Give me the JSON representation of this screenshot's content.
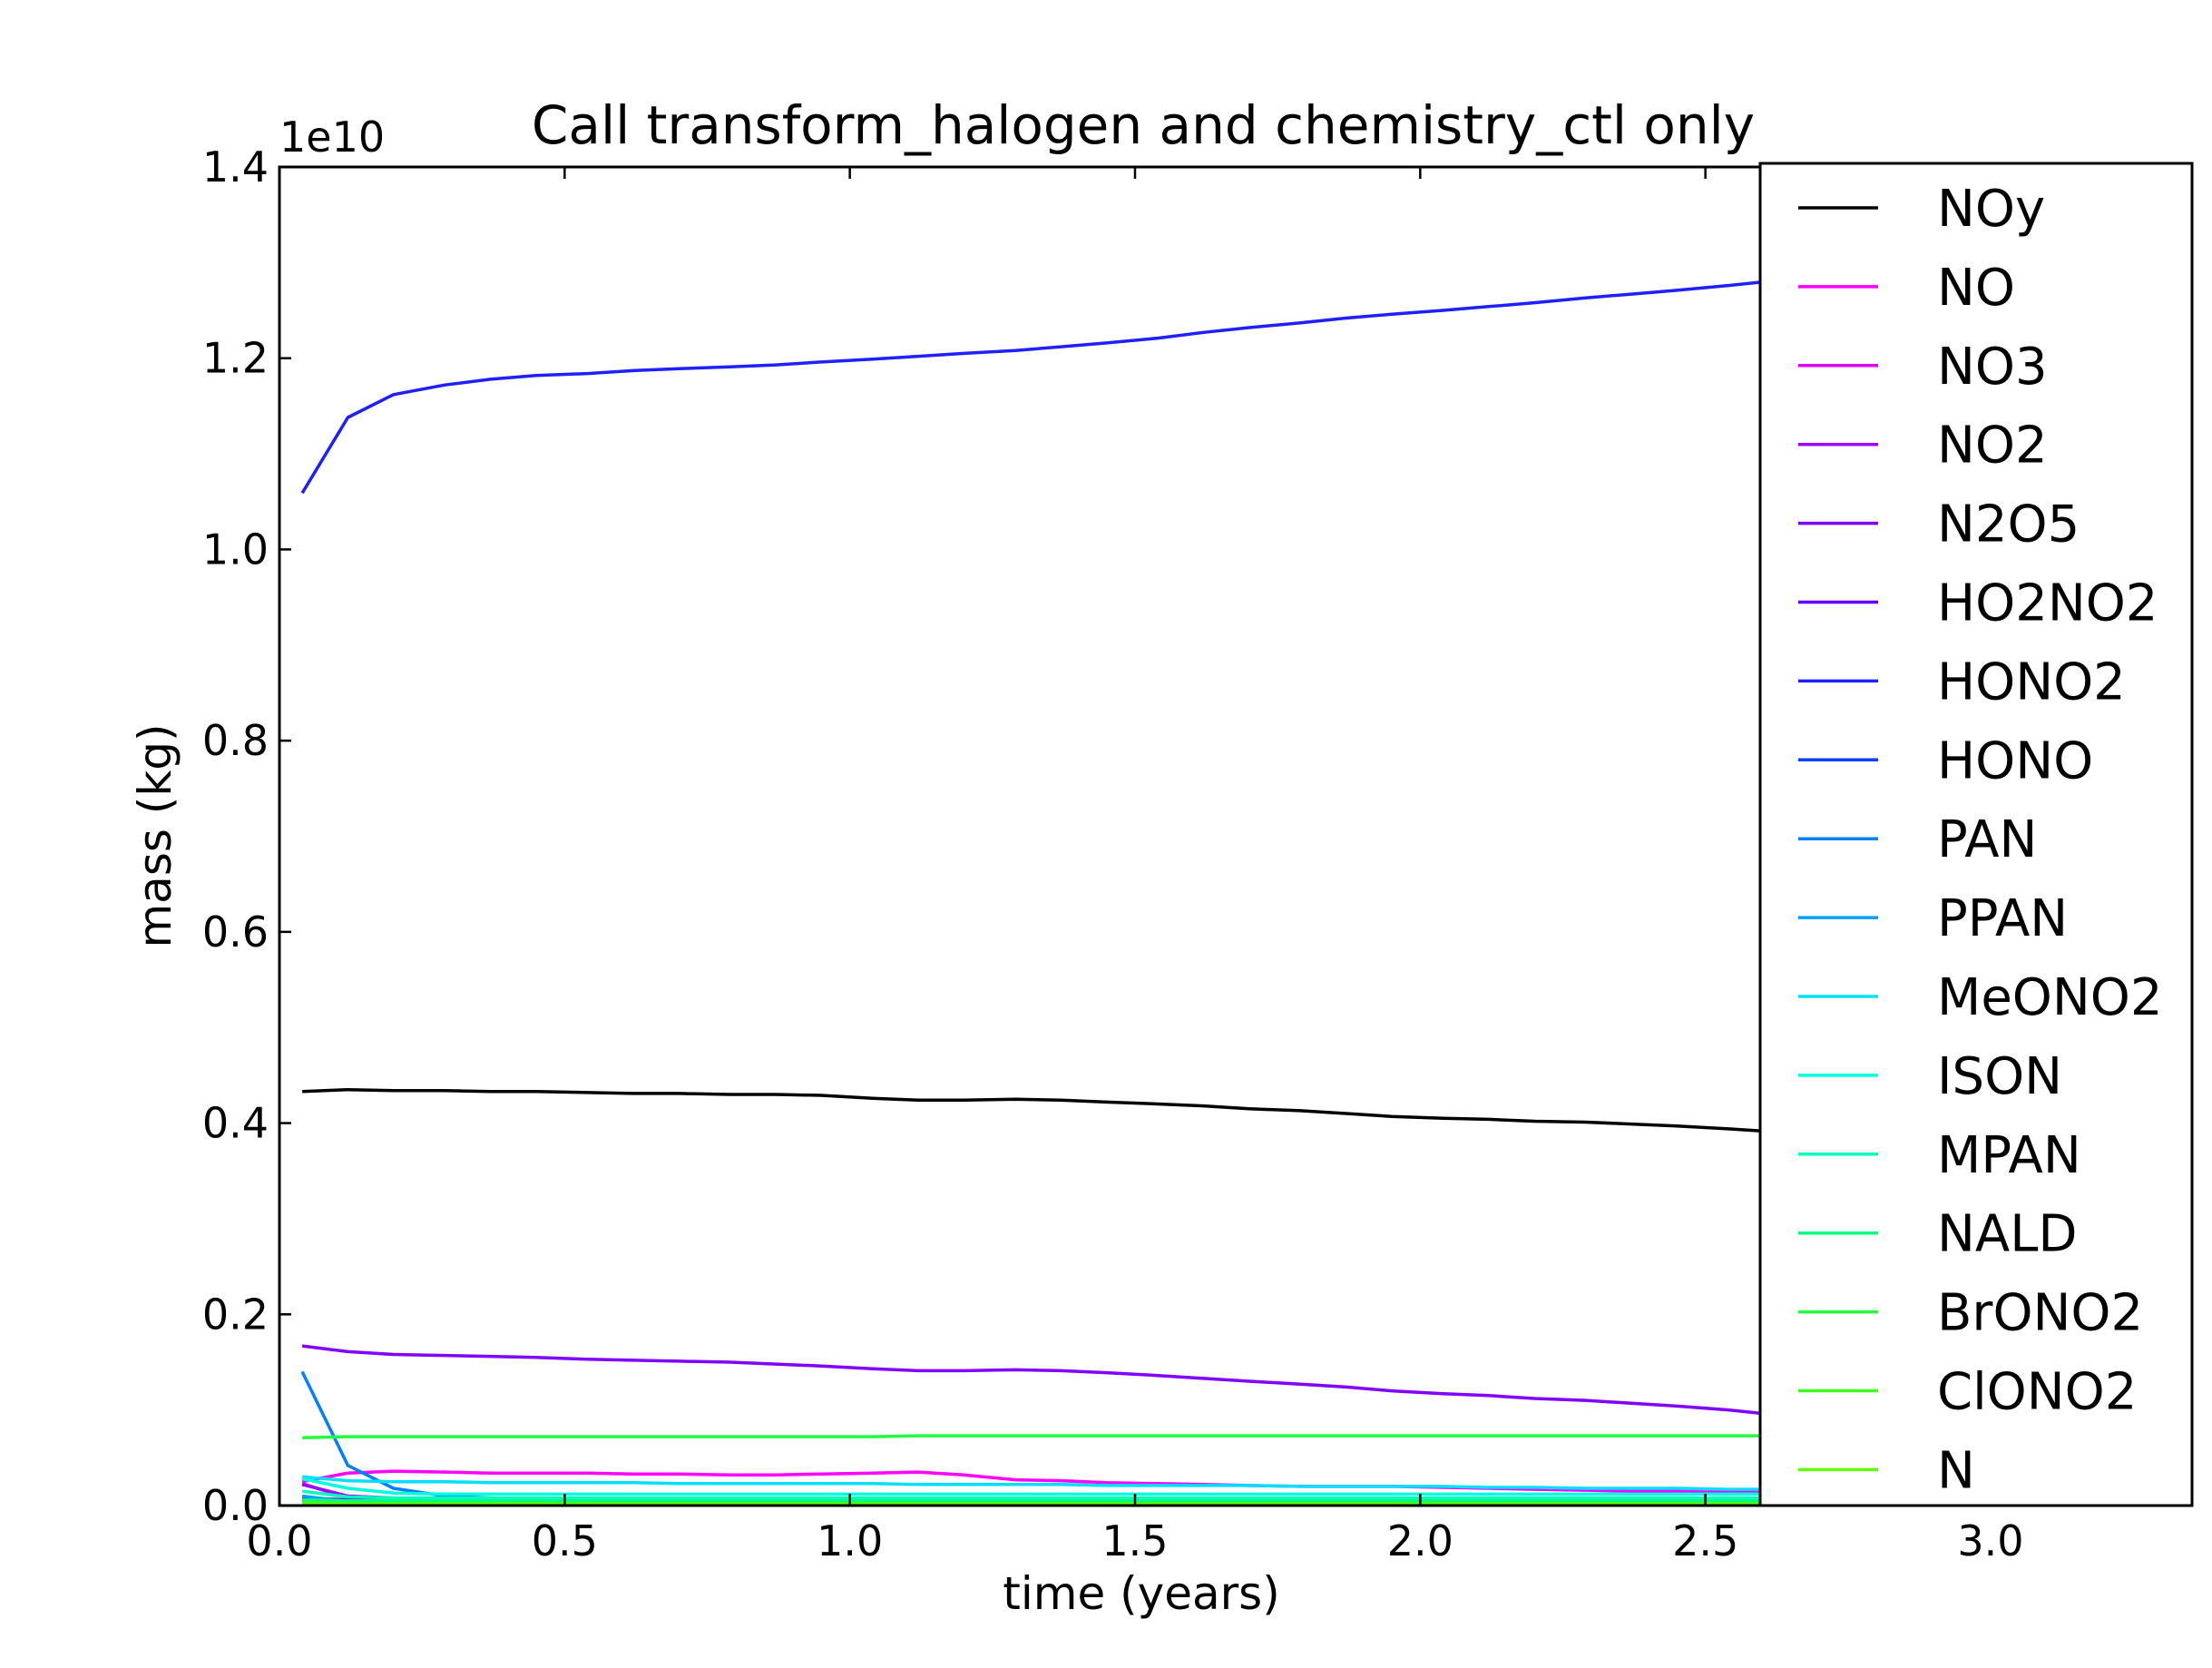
{
  "chart_data": {
    "type": "line",
    "title": "Call transform_halogen and chemistry_ctl only",
    "xlabel": "time (years)",
    "ylabel": "mass (kg)",
    "y_offset_label": "1e10",
    "xlim": [
      0.0,
      3.35
    ],
    "ylim": [
      0.0,
      1.4
    ],
    "x_ticks": [
      "0.0",
      "0.5",
      "1.0",
      "1.5",
      "2.0",
      "2.5",
      "3.0"
    ],
    "x_tick_values": [
      0.0,
      0.5,
      1.0,
      1.5,
      2.0,
      2.5,
      3.0
    ],
    "y_ticks": [
      "0.0",
      "0.2",
      "0.4",
      "0.6",
      "0.8",
      "1.0",
      "1.2",
      "1.4"
    ],
    "y_tick_values": [
      0.0,
      0.2,
      0.4,
      0.6,
      0.8,
      1.0,
      1.2,
      1.4
    ],
    "grid": false,
    "legend_position": "right",
    "x": [
      0.04,
      0.12,
      0.2,
      0.29,
      0.37,
      0.45,
      0.54,
      0.62,
      0.7,
      0.79,
      0.87,
      0.95,
      1.04,
      1.12,
      1.2,
      1.29,
      1.37,
      1.45,
      1.54,
      1.62,
      1.7,
      1.79,
      1.87,
      1.95,
      2.04,
      2.12,
      2.2,
      2.29,
      2.37,
      2.45,
      2.54,
      2.62
    ],
    "series": [
      {
        "name": "NOy",
        "color": "#000000",
        "values": [
          0.433,
          0.435,
          0.434,
          0.434,
          0.433,
          0.433,
          0.432,
          0.431,
          0.431,
          0.43,
          0.43,
          0.429,
          0.426,
          0.424,
          0.424,
          0.425,
          0.424,
          0.422,
          0.42,
          0.418,
          0.415,
          0.413,
          0.41,
          0.407,
          0.405,
          0.404,
          0.402,
          0.401,
          0.399,
          0.397,
          0.394,
          0.391
        ]
      },
      {
        "name": "NO",
        "color": "#ff00ff",
        "values": [
          0.025,
          0.034,
          0.036,
          0.035,
          0.034,
          0.034,
          0.034,
          0.033,
          0.033,
          0.032,
          0.032,
          0.033,
          0.034,
          0.035,
          0.032,
          0.027,
          0.026,
          0.024,
          0.023,
          0.022,
          0.021,
          0.02,
          0.02,
          0.02,
          0.019,
          0.018,
          0.017,
          0.016,
          0.015,
          0.015,
          0.014,
          0.014
        ]
      },
      {
        "name": "NO3",
        "color": "#df00ff",
        "values": [
          0.023,
          0.008,
          0.006,
          0.005,
          0.005,
          0.005,
          0.005,
          0.005,
          0.005,
          0.005,
          0.005,
          0.005,
          0.005,
          0.005,
          0.005,
          0.005,
          0.005,
          0.005,
          0.005,
          0.005,
          0.005,
          0.005,
          0.005,
          0.005,
          0.005,
          0.005,
          0.005,
          0.005,
          0.005,
          0.005,
          0.005,
          0.005
        ]
      },
      {
        "name": "NO2",
        "color": "#9f00ff",
        "values": [
          0.022,
          0.01,
          0.008,
          0.007,
          0.007,
          0.007,
          0.007,
          0.007,
          0.007,
          0.007,
          0.007,
          0.007,
          0.007,
          0.007,
          0.007,
          0.007,
          0.007,
          0.007,
          0.007,
          0.007,
          0.007,
          0.007,
          0.007,
          0.007,
          0.007,
          0.007,
          0.007,
          0.007,
          0.007,
          0.007,
          0.007,
          0.007
        ]
      },
      {
        "name": "N2O5",
        "color": "#7f00ff",
        "values": [
          0.167,
          0.161,
          0.158,
          0.157,
          0.156,
          0.155,
          0.153,
          0.152,
          0.151,
          0.15,
          0.148,
          0.146,
          0.143,
          0.141,
          0.141,
          0.142,
          0.141,
          0.139,
          0.136,
          0.133,
          0.13,
          0.127,
          0.124,
          0.12,
          0.117,
          0.115,
          0.112,
          0.11,
          0.107,
          0.104,
          0.1,
          0.095
        ]
      },
      {
        "name": "HO2NO2",
        "color": "#5f00ff",
        "values": [
          0.008,
          0.006,
          0.005,
          0.005,
          0.005,
          0.005,
          0.005,
          0.005,
          0.005,
          0.005,
          0.005,
          0.005,
          0.005,
          0.005,
          0.005,
          0.005,
          0.005,
          0.005,
          0.005,
          0.005,
          0.005,
          0.005,
          0.005,
          0.005,
          0.005,
          0.005,
          0.005,
          0.005,
          0.005,
          0.005,
          0.005,
          0.005
        ]
      },
      {
        "name": "HONO2",
        "color": "#1f1fff",
        "values": [
          1.059,
          1.138,
          1.162,
          1.172,
          1.178,
          1.182,
          1.184,
          1.187,
          1.189,
          1.191,
          1.193,
          1.196,
          1.199,
          1.202,
          1.205,
          1.208,
          1.212,
          1.216,
          1.221,
          1.227,
          1.232,
          1.237,
          1.242,
          1.246,
          1.25,
          1.254,
          1.258,
          1.263,
          1.267,
          1.271,
          1.276,
          1.281
        ]
      },
      {
        "name": "HONO",
        "color": "#0040ff",
        "values": [
          0.005,
          0.003,
          0.002,
          0.002,
          0.002,
          0.002,
          0.002,
          0.002,
          0.002,
          0.002,
          0.002,
          0.002,
          0.002,
          0.002,
          0.002,
          0.002,
          0.002,
          0.002,
          0.002,
          0.002,
          0.002,
          0.002,
          0.002,
          0.002,
          0.002,
          0.002,
          0.002,
          0.002,
          0.002,
          0.002,
          0.002,
          0.002
        ]
      },
      {
        "name": "PAN",
        "color": "#0080ff",
        "values": [
          0.14,
          0.042,
          0.018,
          0.01,
          0.008,
          0.007,
          0.007,
          0.007,
          0.007,
          0.007,
          0.007,
          0.007,
          0.007,
          0.007,
          0.007,
          0.007,
          0.007,
          0.007,
          0.007,
          0.007,
          0.007,
          0.007,
          0.007,
          0.007,
          0.007,
          0.007,
          0.007,
          0.007,
          0.007,
          0.007,
          0.007,
          0.007
        ]
      },
      {
        "name": "PPAN",
        "color": "#00a0ff",
        "values": [
          0.01,
          0.004,
          0.003,
          0.003,
          0.003,
          0.003,
          0.003,
          0.003,
          0.003,
          0.003,
          0.003,
          0.003,
          0.003,
          0.003,
          0.003,
          0.003,
          0.003,
          0.003,
          0.003,
          0.003,
          0.003,
          0.003,
          0.003,
          0.003,
          0.003,
          0.003,
          0.003,
          0.003,
          0.003,
          0.003,
          0.003,
          0.003
        ]
      },
      {
        "name": "MeONO2",
        "color": "#00dfff",
        "values": [
          0.03,
          0.026,
          0.025,
          0.025,
          0.024,
          0.024,
          0.024,
          0.024,
          0.023,
          0.023,
          0.023,
          0.023,
          0.023,
          0.022,
          0.022,
          0.022,
          0.022,
          0.021,
          0.021,
          0.021,
          0.021,
          0.02,
          0.02,
          0.02,
          0.02,
          0.019,
          0.019,
          0.018,
          0.018,
          0.018,
          0.017,
          0.017
        ]
      },
      {
        "name": "ISON",
        "color": "#00ffdf",
        "values": [
          0.028,
          0.018,
          0.013,
          0.012,
          0.012,
          0.012,
          0.012,
          0.012,
          0.012,
          0.012,
          0.012,
          0.012,
          0.012,
          0.012,
          0.012,
          0.012,
          0.012,
          0.012,
          0.012,
          0.012,
          0.012,
          0.012,
          0.012,
          0.012,
          0.012,
          0.012,
          0.012,
          0.012,
          0.012,
          0.012,
          0.012,
          0.012
        ]
      },
      {
        "name": "MPAN",
        "color": "#00ffbf",
        "values": [
          0.015,
          0.009,
          0.008,
          0.008,
          0.008,
          0.008,
          0.008,
          0.008,
          0.008,
          0.008,
          0.008,
          0.008,
          0.008,
          0.008,
          0.008,
          0.008,
          0.008,
          0.008,
          0.008,
          0.008,
          0.008,
          0.008,
          0.008,
          0.008,
          0.008,
          0.008,
          0.008,
          0.008,
          0.008,
          0.008,
          0.008,
          0.008
        ]
      },
      {
        "name": "NALD",
        "color": "#00ff7f",
        "values": [
          0.006,
          0.005,
          0.005,
          0.005,
          0.005,
          0.005,
          0.005,
          0.005,
          0.005,
          0.005,
          0.005,
          0.005,
          0.005,
          0.005,
          0.005,
          0.005,
          0.005,
          0.005,
          0.005,
          0.005,
          0.005,
          0.005,
          0.005,
          0.005,
          0.005,
          0.005,
          0.005,
          0.005,
          0.005,
          0.005,
          0.005,
          0.005
        ]
      },
      {
        "name": "BrONO2",
        "color": "#1fff3f",
        "values": [
          0.071,
          0.072,
          0.072,
          0.072,
          0.072,
          0.072,
          0.072,
          0.072,
          0.072,
          0.072,
          0.072,
          0.072,
          0.072,
          0.073,
          0.073,
          0.073,
          0.073,
          0.073,
          0.073,
          0.073,
          0.073,
          0.073,
          0.073,
          0.073,
          0.073,
          0.073,
          0.073,
          0.073,
          0.073,
          0.073,
          0.073,
          0.073
        ]
      },
      {
        "name": "ClONO2",
        "color": "#3fff1f",
        "values": [
          0.003,
          0.002,
          0.002,
          0.002,
          0.002,
          0.002,
          0.002,
          0.002,
          0.002,
          0.002,
          0.002,
          0.002,
          0.002,
          0.002,
          0.002,
          0.002,
          0.002,
          0.002,
          0.002,
          0.002,
          0.002,
          0.002,
          0.002,
          0.002,
          0.002,
          0.002,
          0.002,
          0.002,
          0.002,
          0.002,
          0.002,
          0.002
        ]
      },
      {
        "name": "N",
        "color": "#5fff00",
        "values": [
          0.001,
          0.001,
          0.001,
          0.001,
          0.001,
          0.001,
          0.001,
          0.001,
          0.001,
          0.001,
          0.001,
          0.001,
          0.001,
          0.001,
          0.001,
          0.001,
          0.001,
          0.001,
          0.001,
          0.001,
          0.001,
          0.001,
          0.001,
          0.001,
          0.001,
          0.001,
          0.001,
          0.001,
          0.001,
          0.001,
          0.001,
          0.001
        ]
      }
    ]
  }
}
